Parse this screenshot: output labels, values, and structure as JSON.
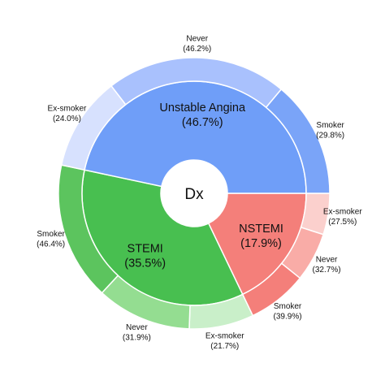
{
  "chart_data": {
    "type": "sunburst",
    "center_label": "Dx",
    "inner": [
      {
        "name": "NSTEMI",
        "value": 17.9,
        "label": "(17.9%)",
        "color": "#f47f7a"
      },
      {
        "name": "STEMI",
        "value": 35.5,
        "label": "(35.5%)",
        "color": "#48bf50"
      },
      {
        "name": "Unstable Angina",
        "value": 46.7,
        "label": "(46.7%)",
        "color": "#6f9ef8"
      }
    ],
    "outer": [
      {
        "parent": "NSTEMI",
        "name": "Ex-smoker",
        "value": 27.5,
        "label": "(27.5%)",
        "color": "#fbd0cd"
      },
      {
        "parent": "NSTEMI",
        "name": "Never",
        "value": 32.7,
        "label": "(32.7%)",
        "color": "#f9aca7"
      },
      {
        "parent": "NSTEMI",
        "name": "Smoker",
        "value": 39.9,
        "label": "(39.9%)",
        "color": "#f47f7a"
      },
      {
        "parent": "STEMI",
        "name": "Ex-smoker",
        "value": 21.7,
        "label": "(21.7%)",
        "color": "#c9efc9"
      },
      {
        "parent": "STEMI",
        "name": "Never",
        "value": 31.9,
        "label": "(31.9%)",
        "color": "#94dd91"
      },
      {
        "parent": "STEMI",
        "name": "Smoker",
        "value": 46.4,
        "label": "(46.4%)",
        "color": "#5cc45e"
      },
      {
        "parent": "Unstable Angina",
        "name": "Ex-smoker",
        "value": 24.0,
        "label": "(24.0%)",
        "color": "#d7e1fe"
      },
      {
        "parent": "Unstable Angina",
        "name": "Never",
        "value": 46.2,
        "label": "(46.2%)",
        "color": "#a9c1fd"
      },
      {
        "parent": "Unstable Angina",
        "name": "Smoker",
        "value": 29.8,
        "label": "(29.8%)",
        "color": "#7aa4f8"
      }
    ]
  }
}
